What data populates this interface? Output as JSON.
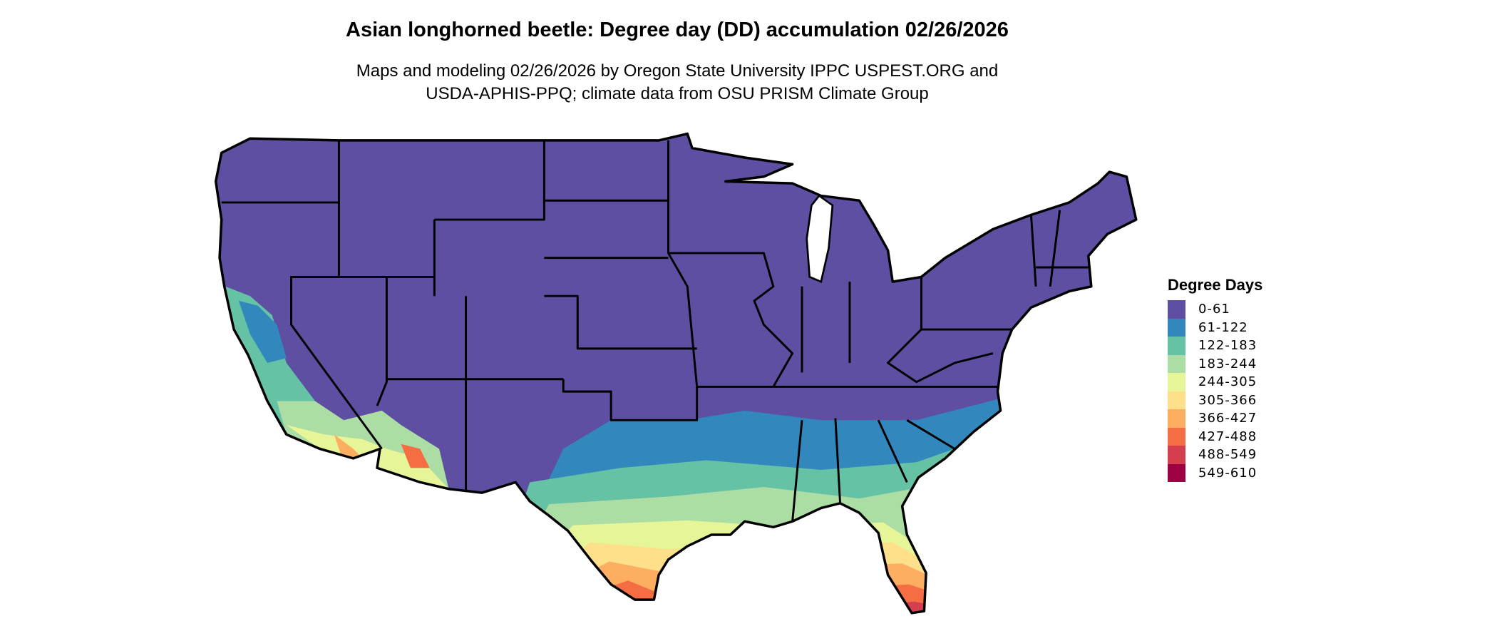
{
  "title": "Asian longhorned beetle: Degree day (DD) accumulation 02/26/2026",
  "subtitle_line1": "Maps and modeling 02/26/2026 by Oregon State University IPPC USPEST.ORG and",
  "subtitle_line2": "USDA-APHIS-PPQ; climate data from OSU PRISM Climate Group",
  "legend": {
    "title": "Degree Days",
    "items": [
      {
        "label": "0-61",
        "color": "#5E4FA2"
      },
      {
        "label": "61-122",
        "color": "#3288BD"
      },
      {
        "label": "122-183",
        "color": "#66C2A5"
      },
      {
        "label": "183-244",
        "color": "#ABDDA4"
      },
      {
        "label": "244-305",
        "color": "#E6F598"
      },
      {
        "label": "305-366",
        "color": "#FEE08B"
      },
      {
        "label": "366-427",
        "color": "#FDAE61"
      },
      {
        "label": "427-488",
        "color": "#F46D43"
      },
      {
        "label": "488-549",
        "color": "#D53E4F"
      },
      {
        "label": "549-610",
        "color": "#9E0142"
      }
    ]
  },
  "map": {
    "region": "Contiguous United States",
    "border_color": "#000000"
  }
}
